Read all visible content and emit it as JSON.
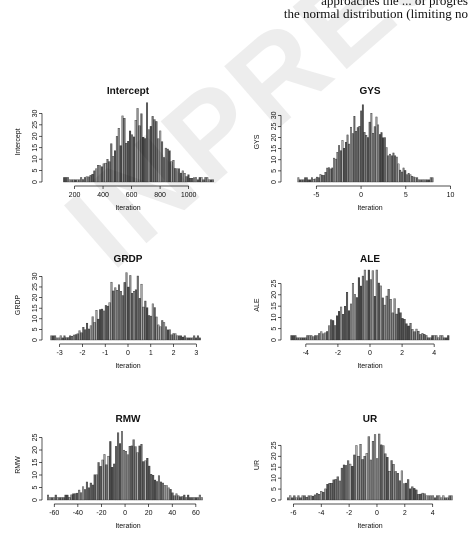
{
  "header": {
    "line1": "approaches the ... of progres",
    "line2": "the normal distribution (limiting no"
  },
  "watermark": "INPRESS",
  "chart_data": [
    {
      "type": "bar",
      "title": "Intercept",
      "xlabel": "Iteration",
      "ylabel": "Intercept",
      "xlim": [
        0,
        1150
      ],
      "ylim": [
        0,
        35
      ],
      "xticks": [
        200,
        400,
        600,
        800,
        1000
      ],
      "yticks": [
        0,
        5,
        10,
        15,
        20,
        25,
        30
      ],
      "center": 650,
      "sd": 160,
      "peak": 30,
      "nbins": 80
    },
    {
      "type": "bar",
      "title": "GYS",
      "xlabel": "Iteration",
      "ylabel": "GYS",
      "xlim": [
        -8.5,
        10.5
      ],
      "ylim": [
        0,
        36
      ],
      "xticks": [
        -5,
        0,
        5,
        10
      ],
      "yticks": [
        0,
        5,
        10,
        15,
        20,
        25,
        30
      ],
      "center": 0.5,
      "sd": 2.3,
      "peak": 31,
      "nbins": 80
    },
    {
      "type": "bar",
      "title": "GRDP",
      "xlabel": "Iteration",
      "ylabel": "GRDP",
      "xlim": [
        -3.6,
        3.6
      ],
      "ylim": [
        0,
        33
      ],
      "xticks": [
        -3,
        -2,
        -1,
        0,
        1,
        2,
        3
      ],
      "yticks": [
        0,
        5,
        10,
        15,
        20,
        25,
        30
      ],
      "center": -0.1,
      "sd": 1.0,
      "peak": 28,
      "nbins": 80
    },
    {
      "type": "bar",
      "title": "ALE",
      "xlabel": "Iteration",
      "ylabel": "ALE",
      "xlim": [
        -5.3,
        5.3
      ],
      "ylim": [
        0,
        31
      ],
      "xticks": [
        -4,
        -2,
        0,
        2,
        4
      ],
      "yticks": [
        0,
        5,
        10,
        15,
        20,
        25
      ],
      "center": 0,
      "sd": 1.5,
      "peak": 27,
      "nbins": 80
    },
    {
      "type": "bar",
      "title": "RMW",
      "xlabel": "Iteration",
      "ylabel": "RMW",
      "xlim": [
        -67,
        72
      ],
      "ylim": [
        0,
        28
      ],
      "xticks": [
        -60,
        -40,
        -20,
        0,
        20,
        40,
        60
      ],
      "yticks": [
        0,
        5,
        10,
        15,
        20,
        25
      ],
      "center": 0,
      "sd": 20,
      "peak": 23,
      "nbins": 80
    },
    {
      "type": "bar",
      "title": "UR",
      "xlabel": "Iteration",
      "ylabel": "UR",
      "xlim": [
        -6.6,
        5.6
      ],
      "ylim": [
        0,
        32
      ],
      "xticks": [
        -6,
        -4,
        -2,
        0,
        2,
        4
      ],
      "yticks": [
        0,
        5,
        10,
        15,
        20,
        25
      ],
      "center": -0.5,
      "sd": 1.8,
      "peak": 26,
      "nbins": 80
    }
  ]
}
